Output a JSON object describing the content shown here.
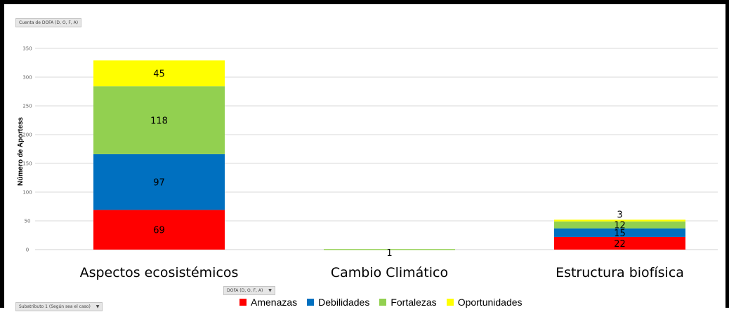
{
  "field_buttons": {
    "values": "Cuenta de DOFA (D, O, F, A)",
    "legend_field": "DOFA (D, O, F, A)",
    "axis_field": "Subatributo 1 (Según sea el caso)"
  },
  "chart_data": {
    "type": "bar",
    "stacked": true,
    "categories": [
      "Aspectos ecosistémicos",
      "Cambio Climático",
      "Estructura biofísica"
    ],
    "series": [
      {
        "name": "Amenazas",
        "color": "#ff0000",
        "values": [
          69,
          0,
          22
        ]
      },
      {
        "name": "Debilidades",
        "color": "#0070c0",
        "values": [
          97,
          0,
          15
        ]
      },
      {
        "name": "Fortalezas",
        "color": "#92d050",
        "values": [
          118,
          1,
          12
        ]
      },
      {
        "name": "Oportunidades",
        "color": "#ffff00",
        "values": [
          45,
          0,
          3
        ]
      }
    ],
    "ylabel": "Número de Aportess",
    "ylim": [
      0,
      350
    ],
    "yticks": [
      0,
      50,
      100,
      150,
      200,
      250,
      300,
      350
    ],
    "grid": true,
    "legend_position": "bottom"
  }
}
